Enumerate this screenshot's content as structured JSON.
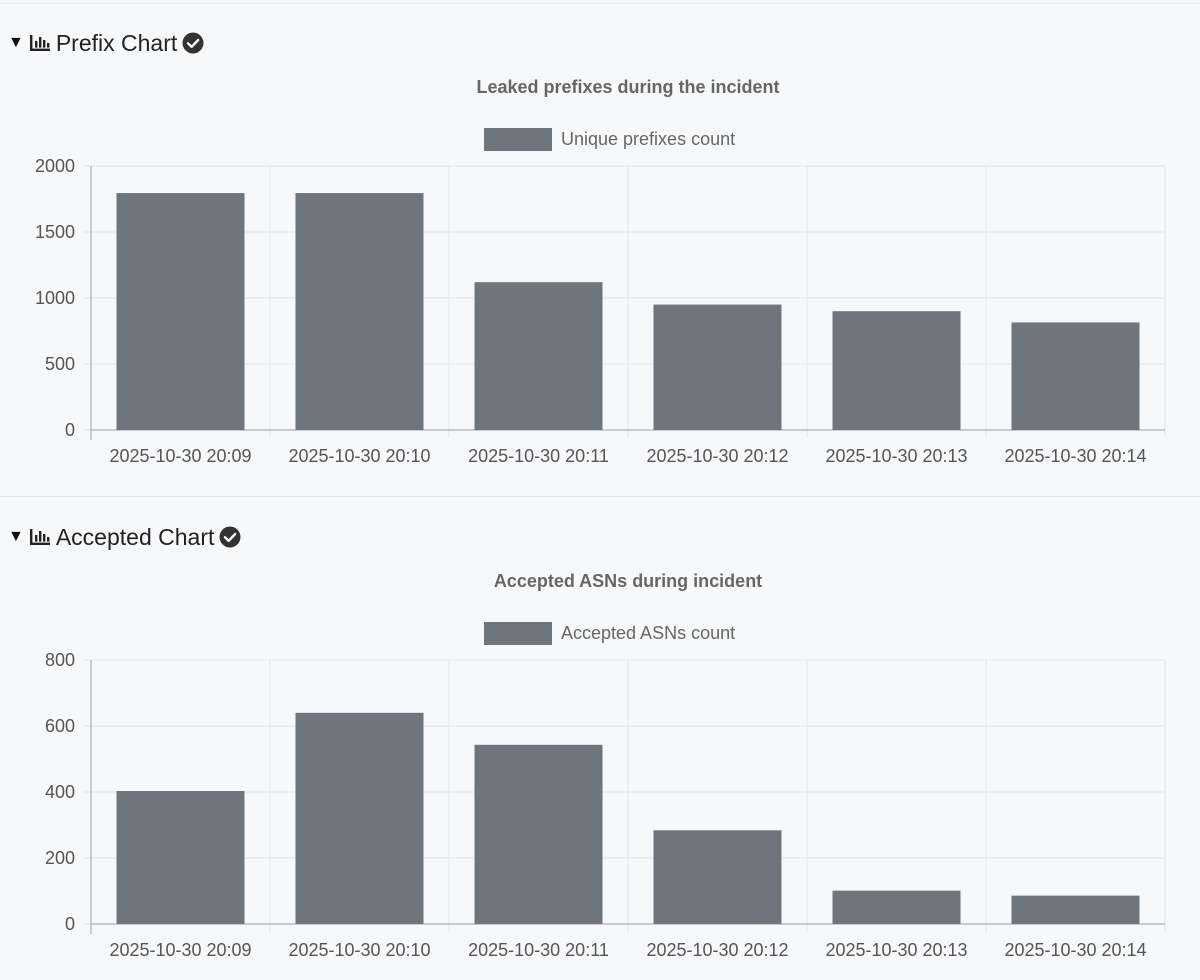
{
  "sections": [
    {
      "header": {
        "label": "Prefix Chart",
        "chart_icon": "bar-chart-icon",
        "status_icon": "check-circle-icon"
      },
      "colors": {
        "bar": "#6e757c",
        "grid": "#e2e3e6",
        "axis": "#9a9ea4"
      }
    },
    {
      "header": {
        "label": "Accepted Chart",
        "chart_icon": "bar-chart-icon",
        "status_icon": "check-circle-icon"
      },
      "colors": {
        "bar": "#6e757c",
        "grid": "#e2e3e6",
        "axis": "#9a9ea4"
      }
    }
  ],
  "chart_data": [
    {
      "type": "bar",
      "title": "Leaked prefixes during the incident",
      "legend": "Unique prefixes count",
      "categories": [
        "2025-10-30 20:09",
        "2025-10-30 20:10",
        "2025-10-30 20:11",
        "2025-10-30 20:12",
        "2025-10-30 20:13",
        "2025-10-30 20:14"
      ],
      "values": [
        1795,
        1795,
        1120,
        950,
        900,
        815
      ],
      "ylim": [
        0,
        2000
      ],
      "yticks": [
        0,
        500,
        1000,
        1500,
        2000
      ],
      "xlabel": "",
      "ylabel": ""
    },
    {
      "type": "bar",
      "title": "Accepted ASNs during incident",
      "legend": "Accepted ASNs count",
      "categories": [
        "2025-10-30 20:09",
        "2025-10-30 20:10",
        "2025-10-30 20:11",
        "2025-10-30 20:12",
        "2025-10-30 20:13",
        "2025-10-30 20:14"
      ],
      "values": [
        403,
        640,
        543,
        284,
        101,
        86
      ],
      "ylim": [
        0,
        800
      ],
      "yticks": [
        0,
        200,
        400,
        600,
        800
      ],
      "xlabel": "",
      "ylabel": ""
    }
  ]
}
